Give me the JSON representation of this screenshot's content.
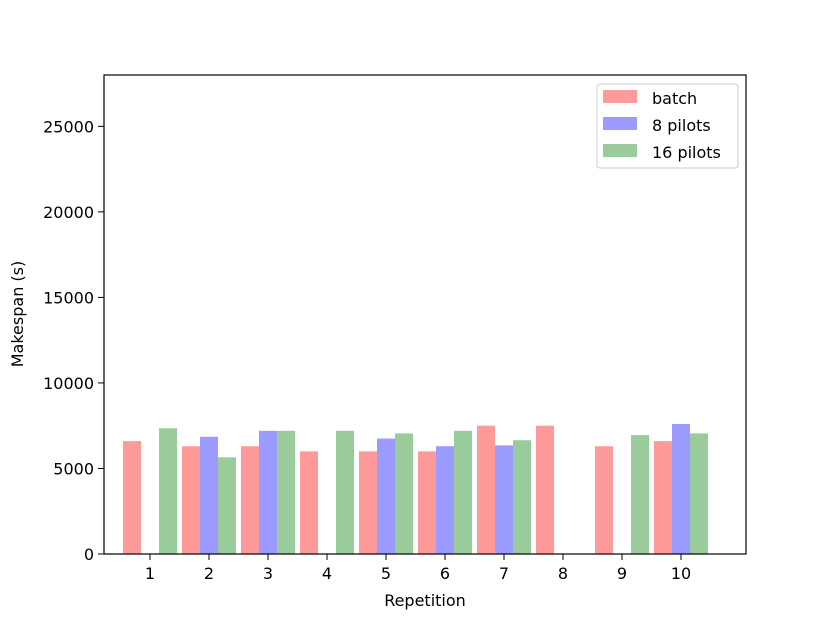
{
  "chart_data": {
    "type": "bar",
    "title": "",
    "xlabel": "Repetition",
    "ylabel": "Makespan (s)",
    "ylim": [
      0,
      28000
    ],
    "yticks": [
      0,
      5000,
      10000,
      15000,
      20000,
      25000
    ],
    "categories": [
      "1",
      "2",
      "3",
      "4",
      "5",
      "6",
      "7",
      "8",
      "9",
      "10"
    ],
    "legend_position": "top-right",
    "grid": false,
    "series": [
      {
        "name": "batch",
        "color": "#ff9a9a",
        "values": [
          6600,
          6300,
          6300,
          6000,
          6000,
          6000,
          7500,
          7500,
          6300,
          6600
        ]
      },
      {
        "name": "8 pilots",
        "color": "#9a9aff",
        "values": [
          null,
          6850,
          7200,
          null,
          6750,
          6300,
          6350,
          null,
          null,
          7600
        ]
      },
      {
        "name": "16 pilots",
        "color": "#9acb9a",
        "values": [
          7350,
          5650,
          7200,
          7200,
          7050,
          7200,
          6650,
          null,
          6950,
          7050
        ]
      }
    ]
  }
}
